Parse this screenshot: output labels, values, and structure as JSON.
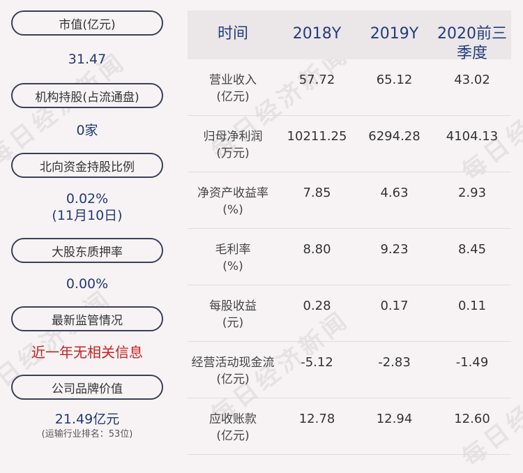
{
  "watermark": "每日经济新闻",
  "left_panel": [
    {
      "label": "市值(亿元)",
      "value": "31.47"
    },
    {
      "label": "机构持股(占流通盘)",
      "value": "0家"
    },
    {
      "label": "北向资金持股比例",
      "value": "0.02%",
      "value2": "(11月10日)"
    },
    {
      "label": "大股东质押率",
      "value": "0.00%"
    },
    {
      "label": "最新监管情况",
      "value": "近一年无相关信息"
    },
    {
      "label": "公司品牌价值",
      "value": "21.49亿元",
      "note": "(运输行业排名：53位)"
    }
  ],
  "table": {
    "headers": [
      "时间",
      "2018Y",
      "2019Y",
      "2020前三季度"
    ],
    "rows": [
      {
        "label": [
          "营业收入",
          "(亿元)"
        ],
        "values": [
          "57.72",
          "65.12",
          "43.02"
        ]
      },
      {
        "label": [
          "归母净利润",
          "(万元)"
        ],
        "values": [
          "10211.25",
          "6294.28",
          "4104.13"
        ]
      },
      {
        "label": [
          "净资产收益率",
          "(%)"
        ],
        "values": [
          "7.85",
          "4.63",
          "2.93"
        ]
      },
      {
        "label": [
          "毛利率",
          "(%)"
        ],
        "values": [
          "8.80",
          "9.23",
          "8.45"
        ]
      },
      {
        "label": [
          "每股收益",
          "(元)"
        ],
        "values": [
          "0.28",
          "0.17",
          "0.11"
        ]
      },
      {
        "label": [
          "经营活动现金流",
          "(亿元)"
        ],
        "values": [
          "-5.12",
          "-2.83",
          "-1.49"
        ]
      },
      {
        "label": [
          "应收账款",
          "(亿元)"
        ],
        "values": [
          "12.78",
          "12.94",
          "12.60"
        ]
      }
    ]
  },
  "colors": {
    "background": "#f7f3f4",
    "pill_border": "#3a3f58",
    "value_blue": "#223a75",
    "header_blue": "#213d7c",
    "alert_red": "#c8201e",
    "header_bg": "#ebe6e8"
  }
}
